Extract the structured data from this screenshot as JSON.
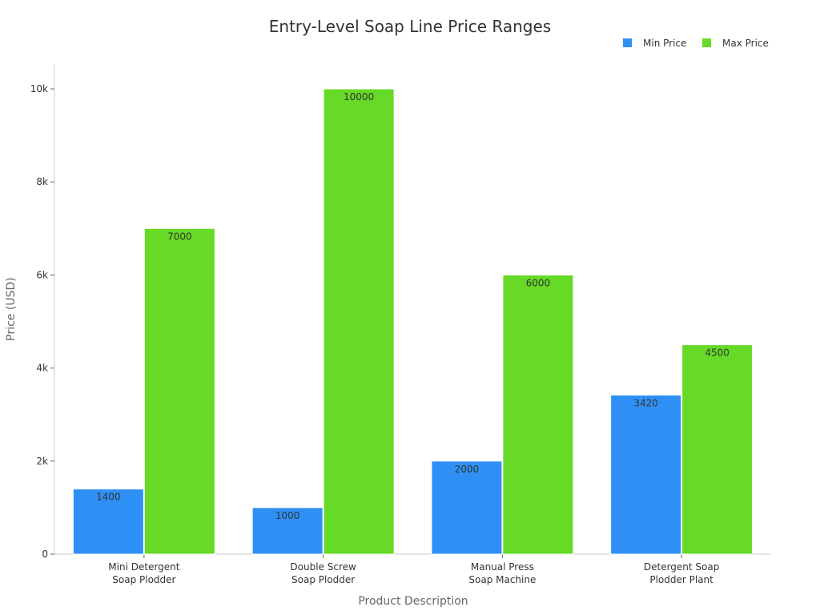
{
  "chart_data": {
    "type": "bar",
    "title": "Entry-Level Soap Line Price Ranges",
    "xlabel": "Product Description",
    "ylabel": "Price (USD)",
    "categories": [
      [
        "Mini Detergent",
        "Soap Plodder"
      ],
      [
        "Double Screw",
        "Soap Plodder"
      ],
      [
        "Manual Press",
        "Soap Machine"
      ],
      [
        "Detergent Soap",
        "Plodder Plant"
      ]
    ],
    "series": [
      {
        "name": "Min Price",
        "color": "#2e90f5",
        "values": [
          1400,
          1000,
          2000,
          3420
        ]
      },
      {
        "name": "Max Price",
        "color": "#66da26",
        "values": [
          7000,
          10000,
          6000,
          4500
        ]
      }
    ],
    "ylim": [
      0,
      10000
    ],
    "yticks": [
      0,
      2000,
      4000,
      6000,
      8000,
      10000
    ],
    "ytick_labels": [
      "0",
      "2k",
      "4k",
      "6k",
      "8k",
      "10k"
    ],
    "legend_position": "top-right",
    "grid": false,
    "data_labels": true
  }
}
